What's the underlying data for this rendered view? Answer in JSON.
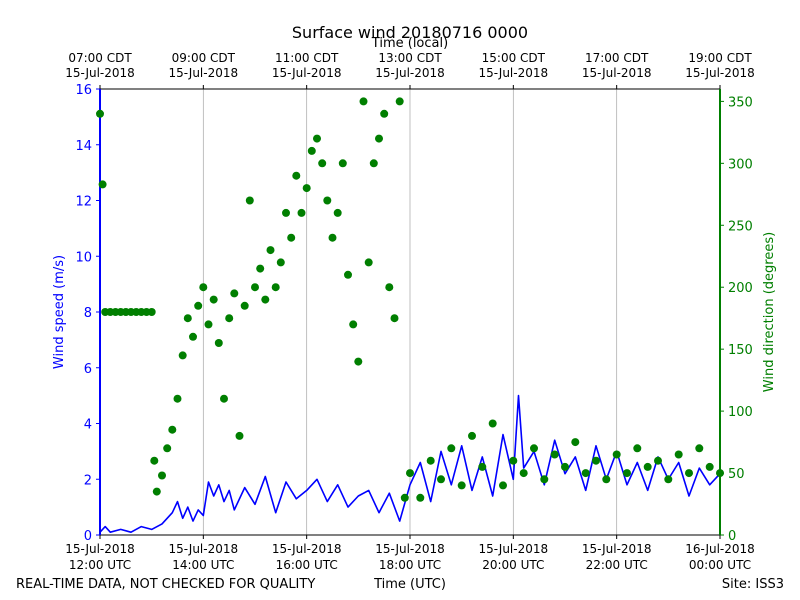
{
  "chart_data": {
    "type": "line+scatter",
    "title": "Surface wind 20180716 0000",
    "top_axis_label": "Time (local)",
    "xlabel": "Time (UTC)",
    "ylabel_left": "Wind speed (m/s)",
    "ylabel_right": "Wind direction (degrees)",
    "ylim_left": [
      0,
      16
    ],
    "ylim_right": [
      0,
      360
    ],
    "yticks_left": [
      "0",
      "2",
      "4",
      "6",
      "8",
      "10",
      "12",
      "14",
      "16"
    ],
    "yticks_right": [
      "0",
      "50",
      "100",
      "150",
      "200",
      "250",
      "300",
      "350"
    ],
    "xlim_hours_utc": [
      12,
      24
    ],
    "bottom_ticks": [
      {
        "h": 12,
        "line1": "15-Jul-2018",
        "line2": "12:00 UTC"
      },
      {
        "h": 14,
        "line1": "15-Jul-2018",
        "line2": "14:00 UTC"
      },
      {
        "h": 16,
        "line1": "15-Jul-2018",
        "line2": "16:00 UTC"
      },
      {
        "h": 18,
        "line1": "15-Jul-2018",
        "line2": "18:00 UTC"
      },
      {
        "h": 20,
        "line1": "15-Jul-2018",
        "line2": "20:00 UTC"
      },
      {
        "h": 22,
        "line1": "15-Jul-2018",
        "line2": "22:00 UTC"
      },
      {
        "h": 24,
        "line1": "16-Jul-2018",
        "line2": "00:00 UTC"
      }
    ],
    "top_ticks": [
      {
        "h": 12,
        "line1": "07:00 CDT",
        "line2": "15-Jul-2018"
      },
      {
        "h": 14,
        "line1": "09:00 CDT",
        "line2": "15-Jul-2018"
      },
      {
        "h": 16,
        "line1": "11:00 CDT",
        "line2": "15-Jul-2018"
      },
      {
        "h": 18,
        "line1": "13:00 CDT",
        "line2": "15-Jul-2018"
      },
      {
        "h": 20,
        "line1": "15:00 CDT",
        "line2": "15-Jul-2018"
      },
      {
        "h": 22,
        "line1": "17:00 CDT",
        "line2": "15-Jul-2018"
      },
      {
        "h": 24,
        "line1": "19:00 CDT",
        "line2": "15-Jul-2018"
      }
    ],
    "series": [
      {
        "name": "Wind speed",
        "axis": "left",
        "style": "line",
        "values_hours_utc": [
          [
            12.0,
            0.1
          ],
          [
            12.1,
            0.3
          ],
          [
            12.2,
            0.1
          ],
          [
            12.4,
            0.2
          ],
          [
            12.6,
            0.1
          ],
          [
            12.8,
            0.3
          ],
          [
            13.0,
            0.2
          ],
          [
            13.2,
            0.4
          ],
          [
            13.4,
            0.8
          ],
          [
            13.5,
            1.2
          ],
          [
            13.6,
            0.6
          ],
          [
            13.7,
            1.0
          ],
          [
            13.8,
            0.5
          ],
          [
            13.9,
            0.9
          ],
          [
            14.0,
            0.7
          ],
          [
            14.1,
            1.9
          ],
          [
            14.2,
            1.4
          ],
          [
            14.3,
            1.8
          ],
          [
            14.4,
            1.2
          ],
          [
            14.5,
            1.6
          ],
          [
            14.6,
            0.9
          ],
          [
            14.8,
            1.7
          ],
          [
            15.0,
            1.1
          ],
          [
            15.2,
            2.1
          ],
          [
            15.4,
            0.8
          ],
          [
            15.6,
            1.9
          ],
          [
            15.8,
            1.3
          ],
          [
            16.0,
            1.6
          ],
          [
            16.2,
            2.0
          ],
          [
            16.4,
            1.2
          ],
          [
            16.6,
            1.8
          ],
          [
            16.8,
            1.0
          ],
          [
            17.0,
            1.4
          ],
          [
            17.2,
            1.6
          ],
          [
            17.4,
            0.8
          ],
          [
            17.6,
            1.5
          ],
          [
            17.8,
            0.5
          ],
          [
            18.0,
            1.8
          ],
          [
            18.2,
            2.6
          ],
          [
            18.4,
            1.2
          ],
          [
            18.6,
            3.0
          ],
          [
            18.8,
            1.8
          ],
          [
            19.0,
            3.2
          ],
          [
            19.2,
            1.6
          ],
          [
            19.4,
            2.8
          ],
          [
            19.6,
            1.4
          ],
          [
            19.8,
            3.6
          ],
          [
            20.0,
            2.0
          ],
          [
            20.1,
            5.0
          ],
          [
            20.2,
            2.4
          ],
          [
            20.4,
            3.0
          ],
          [
            20.6,
            1.8
          ],
          [
            20.8,
            3.4
          ],
          [
            21.0,
            2.2
          ],
          [
            21.2,
            2.8
          ],
          [
            21.4,
            1.6
          ],
          [
            21.6,
            3.2
          ],
          [
            21.8,
            2.0
          ],
          [
            22.0,
            3.0
          ],
          [
            22.2,
            1.8
          ],
          [
            22.4,
            2.6
          ],
          [
            22.6,
            1.6
          ],
          [
            22.8,
            2.8
          ],
          [
            23.0,
            2.0
          ],
          [
            23.2,
            2.6
          ],
          [
            23.4,
            1.4
          ],
          [
            23.6,
            2.4
          ],
          [
            23.8,
            1.8
          ],
          [
            24.0,
            2.2
          ]
        ]
      },
      {
        "name": "Wind direction",
        "axis": "right",
        "style": "scatter",
        "values_hours_utc": [
          [
            12.0,
            340
          ],
          [
            12.05,
            283
          ],
          [
            12.1,
            180
          ],
          [
            12.2,
            180
          ],
          [
            12.3,
            180
          ],
          [
            12.4,
            180
          ],
          [
            12.5,
            180
          ],
          [
            12.6,
            180
          ],
          [
            12.7,
            180
          ],
          [
            12.8,
            180
          ],
          [
            12.9,
            180
          ],
          [
            13.0,
            180
          ],
          [
            13.05,
            60
          ],
          [
            13.1,
            35
          ],
          [
            13.2,
            48
          ],
          [
            13.3,
            70
          ],
          [
            13.4,
            85
          ],
          [
            13.5,
            110
          ],
          [
            13.6,
            145
          ],
          [
            13.7,
            175
          ],
          [
            13.8,
            160
          ],
          [
            13.9,
            185
          ],
          [
            14.0,
            200
          ],
          [
            14.1,
            170
          ],
          [
            14.2,
            190
          ],
          [
            14.3,
            155
          ],
          [
            14.4,
            110
          ],
          [
            14.5,
            175
          ],
          [
            14.6,
            195
          ],
          [
            14.7,
            80
          ],
          [
            14.8,
            185
          ],
          [
            14.9,
            270
          ],
          [
            15.0,
            200
          ],
          [
            15.1,
            215
          ],
          [
            15.2,
            190
          ],
          [
            15.3,
            230
          ],
          [
            15.4,
            200
          ],
          [
            15.5,
            220
          ],
          [
            15.6,
            260
          ],
          [
            15.7,
            240
          ],
          [
            15.8,
            290
          ],
          [
            15.9,
            260
          ],
          [
            16.0,
            280
          ],
          [
            16.1,
            310
          ],
          [
            16.2,
            320
          ],
          [
            16.3,
            300
          ],
          [
            16.4,
            270
          ],
          [
            16.5,
            240
          ],
          [
            16.6,
            260
          ],
          [
            16.7,
            300
          ],
          [
            16.8,
            210
          ],
          [
            16.9,
            170
          ],
          [
            17.0,
            140
          ],
          [
            17.1,
            350
          ],
          [
            17.2,
            220
          ],
          [
            17.3,
            300
          ],
          [
            17.4,
            320
          ],
          [
            17.5,
            340
          ],
          [
            17.6,
            200
          ],
          [
            17.7,
            175
          ],
          [
            17.8,
            350
          ],
          [
            17.9,
            30
          ],
          [
            18.0,
            50
          ],
          [
            18.2,
            30
          ],
          [
            18.4,
            60
          ],
          [
            18.6,
            45
          ],
          [
            18.8,
            70
          ],
          [
            19.0,
            40
          ],
          [
            19.2,
            80
          ],
          [
            19.4,
            55
          ],
          [
            19.6,
            90
          ],
          [
            19.8,
            40
          ],
          [
            20.0,
            60
          ],
          [
            20.2,
            50
          ],
          [
            20.4,
            70
          ],
          [
            20.6,
            45
          ],
          [
            20.8,
            65
          ],
          [
            21.0,
            55
          ],
          [
            21.2,
            75
          ],
          [
            21.4,
            50
          ],
          [
            21.6,
            60
          ],
          [
            21.8,
            45
          ],
          [
            22.0,
            65
          ],
          [
            22.2,
            50
          ],
          [
            22.4,
            70
          ],
          [
            22.6,
            55
          ],
          [
            22.8,
            60
          ],
          [
            23.0,
            45
          ],
          [
            23.2,
            65
          ],
          [
            23.4,
            50
          ],
          [
            23.6,
            70
          ],
          [
            23.8,
            55
          ],
          [
            24.0,
            50
          ]
        ]
      }
    ]
  },
  "footer": {
    "left": "REAL-TIME DATA, NOT CHECKED FOR QUALITY",
    "center": "Time (UTC)",
    "right": "Site: ISS3"
  },
  "colors": {
    "speed": "#0000ff",
    "direction": "#007f00",
    "grid": "#b0b0b0",
    "axis": "#000000"
  }
}
